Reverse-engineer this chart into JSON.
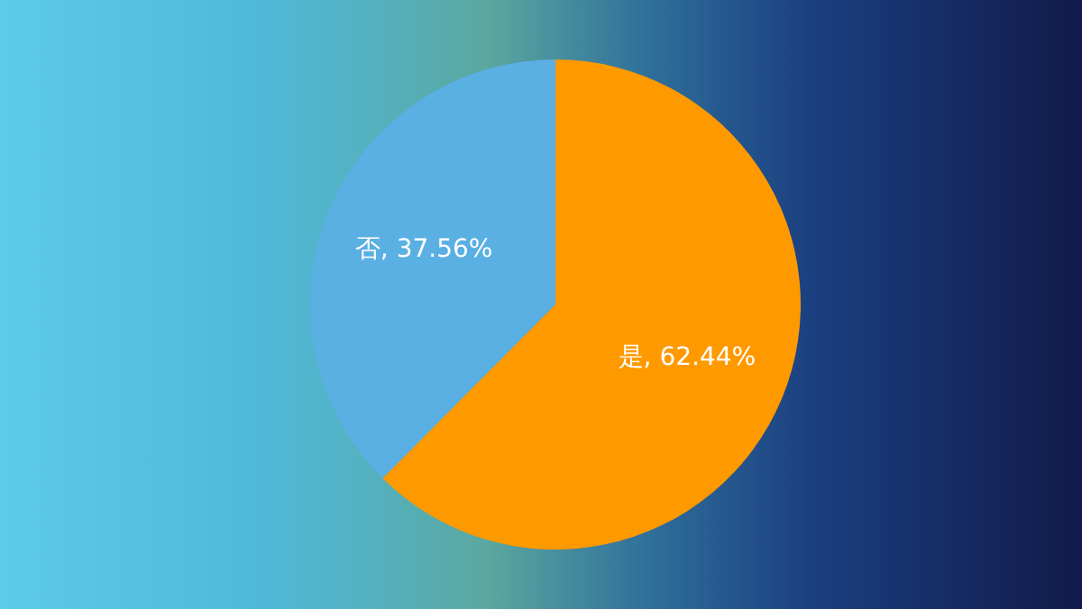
{
  "chart_data": {
    "type": "pie",
    "categories": [
      "否",
      "是"
    ],
    "values": [
      37.56,
      62.44
    ],
    "colors": [
      "#5aafe3",
      "#ff9900"
    ],
    "value_labels": [
      "37.56%",
      "62.44%"
    ],
    "legend": false
  }
}
